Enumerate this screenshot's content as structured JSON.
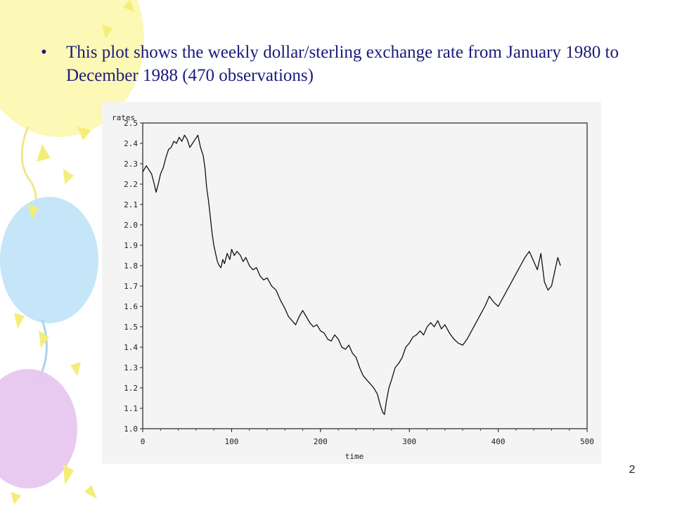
{
  "slide": {
    "bullet_symbol": "•",
    "bullet_text": "This plot shows the weekly dollar/sterling exchange rate from January 1980 to December 1988 (470 observations)",
    "page_number": "2",
    "colors": {
      "text": "#1a1a7a",
      "balloon_yellow": "#fbf7a8",
      "balloon_blue": "#bfe3f8",
      "balloon_purple": "#e6c4f0",
      "confetti": "#f3ee7a"
    }
  },
  "chart_data": {
    "type": "line",
    "title": "",
    "xlabel": "time",
    "ylabel": "rates",
    "xlim": [
      0,
      500
    ],
    "ylim": [
      1.0,
      2.5
    ],
    "x_ticks": [
      0,
      100,
      200,
      300,
      400,
      500
    ],
    "y_ticks": [
      1.0,
      1.1,
      1.2,
      1.3,
      1.4,
      1.5,
      1.6,
      1.7,
      1.8,
      1.9,
      2.0,
      2.1,
      2.2,
      2.3,
      2.4,
      2.5
    ],
    "grid": false,
    "legend": "none",
    "series": [
      {
        "color": "#111111",
        "points": [
          [
            0,
            2.26
          ],
          [
            4,
            2.29
          ],
          [
            7,
            2.27
          ],
          [
            10,
            2.25
          ],
          [
            13,
            2.2
          ],
          [
            15,
            2.16
          ],
          [
            18,
            2.21
          ],
          [
            20,
            2.25
          ],
          [
            23,
            2.28
          ],
          [
            26,
            2.33
          ],
          [
            29,
            2.37
          ],
          [
            32,
            2.38
          ],
          [
            35,
            2.41
          ],
          [
            38,
            2.4
          ],
          [
            41,
            2.43
          ],
          [
            44,
            2.41
          ],
          [
            47,
            2.44
          ],
          [
            50,
            2.42
          ],
          [
            53,
            2.38
          ],
          [
            56,
            2.4
          ],
          [
            59,
            2.42
          ],
          [
            62,
            2.44
          ],
          [
            65,
            2.38
          ],
          [
            68,
            2.34
          ],
          [
            70,
            2.28
          ],
          [
            72,
            2.18
          ],
          [
            74,
            2.12
          ],
          [
            76,
            2.04
          ],
          [
            78,
            1.96
          ],
          [
            80,
            1.9
          ],
          [
            82,
            1.86
          ],
          [
            84,
            1.82
          ],
          [
            86,
            1.8
          ],
          [
            88,
            1.79
          ],
          [
            90,
            1.83
          ],
          [
            92,
            1.81
          ],
          [
            95,
            1.86
          ],
          [
            98,
            1.83
          ],
          [
            100,
            1.88
          ],
          [
            103,
            1.85
          ],
          [
            106,
            1.87
          ],
          [
            110,
            1.85
          ],
          [
            113,
            1.82
          ],
          [
            116,
            1.84
          ],
          [
            120,
            1.8
          ],
          [
            124,
            1.78
          ],
          [
            128,
            1.79
          ],
          [
            132,
            1.75
          ],
          [
            136,
            1.73
          ],
          [
            140,
            1.74
          ],
          [
            145,
            1.7
          ],
          [
            150,
            1.68
          ],
          [
            155,
            1.63
          ],
          [
            160,
            1.59
          ],
          [
            164,
            1.55
          ],
          [
            168,
            1.53
          ],
          [
            172,
            1.51
          ],
          [
            176,
            1.55
          ],
          [
            180,
            1.58
          ],
          [
            184,
            1.55
          ],
          [
            188,
            1.52
          ],
          [
            192,
            1.5
          ],
          [
            196,
            1.51
          ],
          [
            200,
            1.48
          ],
          [
            204,
            1.47
          ],
          [
            208,
            1.44
          ],
          [
            212,
            1.43
          ],
          [
            216,
            1.46
          ],
          [
            220,
            1.44
          ],
          [
            224,
            1.4
          ],
          [
            228,
            1.39
          ],
          [
            232,
            1.41
          ],
          [
            236,
            1.37
          ],
          [
            240,
            1.35
          ],
          [
            244,
            1.3
          ],
          [
            248,
            1.26
          ],
          [
            252,
            1.24
          ],
          [
            256,
            1.22
          ],
          [
            260,
            1.2
          ],
          [
            264,
            1.17
          ],
          [
            267,
            1.12
          ],
          [
            270,
            1.08
          ],
          [
            272,
            1.07
          ],
          [
            274,
            1.13
          ],
          [
            277,
            1.2
          ],
          [
            280,
            1.24
          ],
          [
            284,
            1.3
          ],
          [
            288,
            1.32
          ],
          [
            292,
            1.35
          ],
          [
            296,
            1.4
          ],
          [
            300,
            1.42
          ],
          [
            304,
            1.45
          ],
          [
            308,
            1.46
          ],
          [
            312,
            1.48
          ],
          [
            316,
            1.46
          ],
          [
            320,
            1.5
          ],
          [
            324,
            1.52
          ],
          [
            328,
            1.5
          ],
          [
            332,
            1.53
          ],
          [
            336,
            1.49
          ],
          [
            340,
            1.51
          ],
          [
            345,
            1.47
          ],
          [
            350,
            1.44
          ],
          [
            355,
            1.42
          ],
          [
            360,
            1.41
          ],
          [
            365,
            1.44
          ],
          [
            370,
            1.48
          ],
          [
            375,
            1.52
          ],
          [
            380,
            1.56
          ],
          [
            385,
            1.6
          ],
          [
            390,
            1.65
          ],
          [
            395,
            1.62
          ],
          [
            400,
            1.6
          ],
          [
            405,
            1.64
          ],
          [
            410,
            1.68
          ],
          [
            415,
            1.72
          ],
          [
            420,
            1.76
          ],
          [
            425,
            1.8
          ],
          [
            430,
            1.84
          ],
          [
            435,
            1.87
          ],
          [
            440,
            1.82
          ],
          [
            444,
            1.78
          ],
          [
            448,
            1.86
          ],
          [
            452,
            1.72
          ],
          [
            456,
            1.68
          ],
          [
            460,
            1.7
          ],
          [
            464,
            1.78
          ],
          [
            467,
            1.84
          ],
          [
            470,
            1.8
          ]
        ]
      }
    ]
  }
}
